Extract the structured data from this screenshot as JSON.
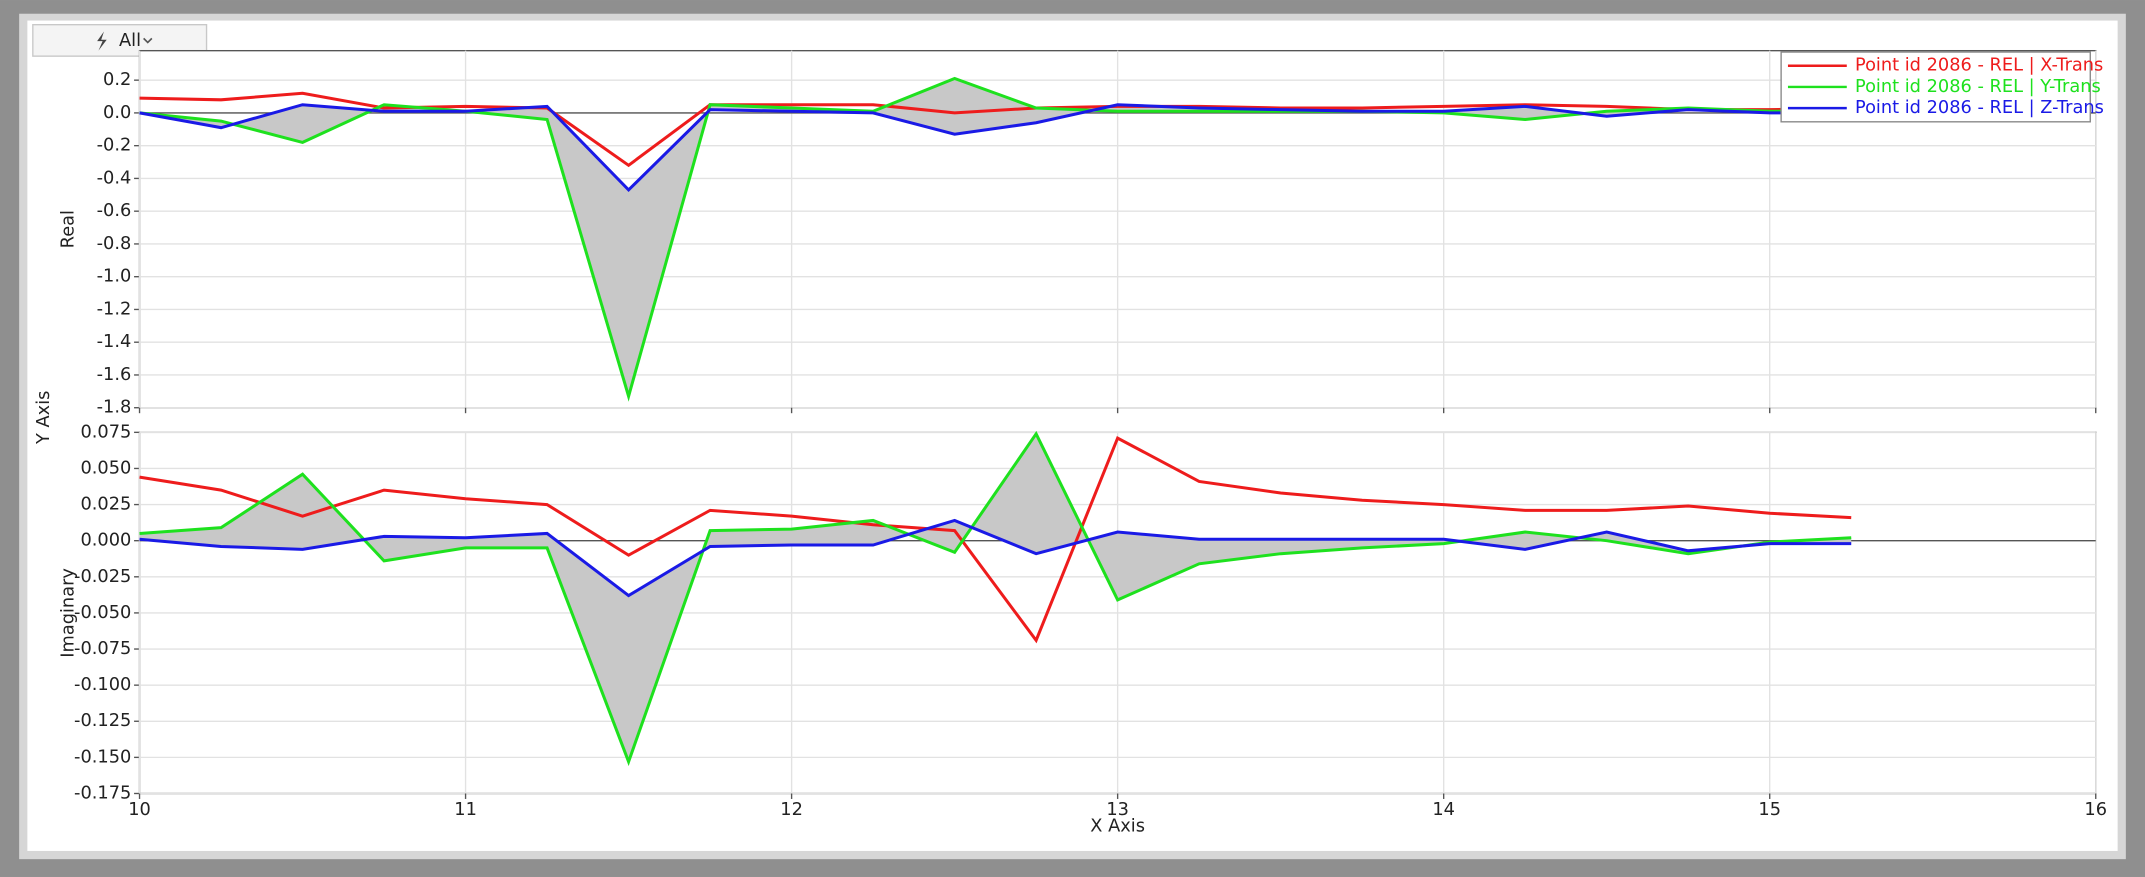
{
  "toolbar": {
    "button": "All"
  },
  "y_axis_label": "Y Axis",
  "chart_data": [
    {
      "type": "line",
      "ylabel": "Real",
      "legend": "upper right",
      "grid": true,
      "x": [
        10,
        10.25,
        10.5,
        10.75,
        11,
        11.25,
        11.5,
        11.75,
        12,
        12.25,
        12.5,
        12.75,
        13,
        13.25,
        13.5,
        13.75,
        14,
        14.25,
        14.5,
        14.75,
        15,
        15.25
      ],
      "xlim": [
        10,
        16
      ],
      "xticks": [
        10,
        11,
        12,
        13,
        14,
        15,
        16
      ],
      "ylim": [
        -1.8,
        0.38
      ],
      "yticks": [
        {
          "value": 0.2,
          "label": "0.2"
        },
        {
          "value": 0,
          "label": "0.0"
        },
        {
          "value": -0.2,
          "label": "-0.2"
        },
        {
          "value": -0.4,
          "label": "-0.4"
        },
        {
          "value": -0.6,
          "label": "-0.6"
        },
        {
          "value": -0.8,
          "label": "-0.8"
        },
        {
          "value": -1.0,
          "label": "-1.0"
        },
        {
          "value": -1.2,
          "label": "-1.2"
        },
        {
          "value": -1.4,
          "label": "-1.4"
        },
        {
          "value": -1.6,
          "label": "-1.6"
        },
        {
          "value": -1.8,
          "label": "-1.8"
        }
      ],
      "series": [
        {
          "name": "Point id 2086 - REL | X-Trans",
          "color": "#ee1c1c",
          "values": [
            0.09,
            0.08,
            0.12,
            0.03,
            0.04,
            0.03,
            -0.32,
            0.05,
            0.05,
            0.05,
            0.0,
            0.03,
            0.04,
            0.04,
            0.03,
            0.03,
            0.04,
            0.05,
            0.04,
            0.02,
            0.02,
            0.03
          ]
        },
        {
          "name": "Point id 2086 - REL | Y-Trans",
          "color": "#1ee11e",
          "values": [
            0.0,
            -0.05,
            -0.18,
            0.05,
            0.01,
            -0.04,
            -1.73,
            0.05,
            0.03,
            0.01,
            0.21,
            0.03,
            0.01,
            0.01,
            0.01,
            0.01,
            0.0,
            -0.04,
            0.01,
            0.03,
            0.01,
            0.01
          ]
        },
        {
          "name": "Point id 2086 - REL | Z-Trans",
          "color": "#1a1ae6",
          "values": [
            0.0,
            -0.09,
            0.05,
            0.01,
            0.01,
            0.04,
            -0.47,
            0.02,
            0.01,
            0.0,
            -0.13,
            -0.06,
            0.05,
            0.03,
            0.02,
            0.01,
            0.01,
            0.04,
            -0.02,
            0.02,
            0.0,
            0.0
          ]
        }
      ]
    },
    {
      "type": "line",
      "ylabel": "Imaginary",
      "xlabel": "X Axis",
      "grid": true,
      "x": [
        10,
        10.25,
        10.5,
        10.75,
        11,
        11.25,
        11.5,
        11.75,
        12,
        12.25,
        12.5,
        12.75,
        13,
        13.25,
        13.5,
        13.75,
        14,
        14.25,
        14.5,
        14.75,
        15,
        15.25
      ],
      "xlim": [
        10,
        16
      ],
      "xticks": [
        10,
        11,
        12,
        13,
        14,
        15,
        16
      ],
      "ylim": [
        -0.175,
        0.075
      ],
      "yticks": [
        {
          "value": 0.075,
          "label": "0.075"
        },
        {
          "value": 0.05,
          "label": "0.050"
        },
        {
          "value": 0.025,
          "label": "0.025"
        },
        {
          "value": 0,
          "label": "0.000"
        },
        {
          "value": -0.025,
          "label": "-0.025"
        },
        {
          "value": -0.05,
          "label": "-0.050"
        },
        {
          "value": -0.075,
          "label": "-0.075"
        },
        {
          "value": -0.1,
          "label": "-0.100"
        },
        {
          "value": -0.125,
          "label": "-0.125"
        },
        {
          "value": -0.15,
          "label": "-0.150"
        },
        {
          "value": -0.175,
          "label": "-0.175"
        }
      ],
      "series": [
        {
          "color": "#ee1c1c",
          "values": [
            0.044,
            0.035,
            0.017,
            0.035,
            0.029,
            0.025,
            -0.01,
            0.021,
            0.017,
            0.011,
            0.007,
            -0.069,
            0.071,
            0.041,
            0.033,
            0.028,
            0.025,
            0.021,
            0.021,
            0.024,
            0.019,
            0.016
          ]
        },
        {
          "color": "#1ee11e",
          "values": [
            0.005,
            0.009,
            0.046,
            -0.014,
            -0.005,
            -0.005,
            -0.153,
            0.007,
            0.008,
            0.014,
            -0.008,
            0.074,
            -0.041,
            -0.016,
            -0.009,
            -0.005,
            -0.002,
            0.006,
            0.0,
            -0.009,
            -0.001,
            0.002
          ]
        },
        {
          "color": "#1a1ae6",
          "values": [
            0.001,
            -0.004,
            -0.006,
            0.003,
            0.002,
            0.005,
            -0.038,
            -0.004,
            -0.003,
            -0.003,
            0.014,
            -0.009,
            0.006,
            0.001,
            0.001,
            0.001,
            0.001,
            -0.006,
            0.006,
            -0.007,
            -0.002,
            -0.002
          ]
        }
      ]
    }
  ]
}
